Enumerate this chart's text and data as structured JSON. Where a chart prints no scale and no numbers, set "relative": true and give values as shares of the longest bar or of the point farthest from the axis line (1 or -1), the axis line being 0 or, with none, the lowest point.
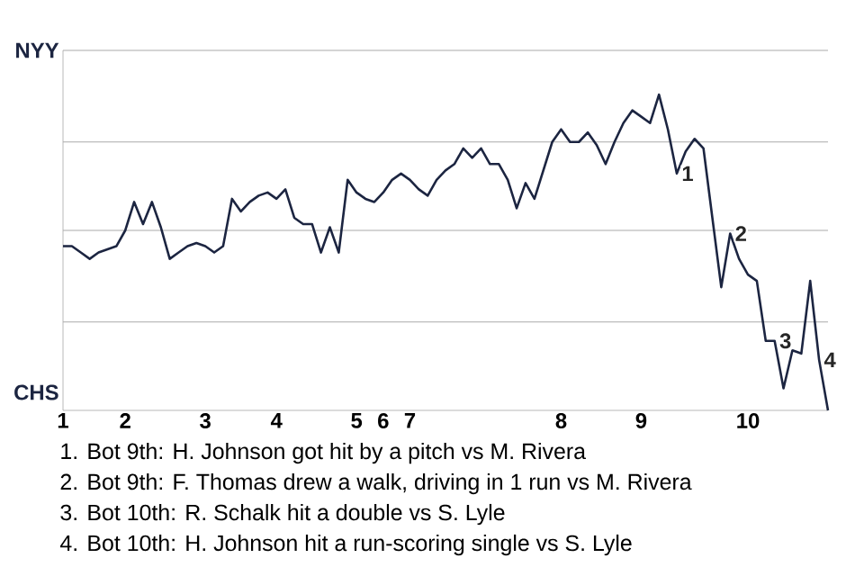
{
  "chart_data": {
    "type": "line",
    "relative": true,
    "categories": [
      "1",
      null,
      null,
      null,
      null,
      null,
      null,
      "2",
      null,
      null,
      null,
      null,
      null,
      null,
      null,
      null,
      "3",
      null,
      null,
      null,
      null,
      null,
      null,
      null,
      "4",
      null,
      null,
      null,
      null,
      null,
      null,
      null,
      null,
      "5",
      null,
      null,
      "6",
      null,
      null,
      "7",
      null,
      null,
      null,
      null,
      null,
      null,
      null,
      null,
      null,
      null,
      null,
      null,
      null,
      null,
      null,
      null,
      "8",
      null,
      null,
      null,
      null,
      null,
      null,
      null,
      null,
      "9",
      null,
      null,
      null,
      null,
      null,
      null,
      null,
      null,
      null,
      null,
      null,
      "10",
      null,
      null,
      null,
      null,
      null,
      null,
      null,
      null,
      null
    ],
    "series": [
      {
        "color": "#1c2541",
        "values": [
          0.52,
          0.52,
          0.5,
          0.48,
          0.5,
          0.51,
          0.52,
          0.57,
          0.66,
          0.59,
          0.66,
          0.58,
          0.48,
          0.5,
          0.52,
          0.53,
          0.52,
          0.5,
          0.52,
          0.67,
          0.63,
          0.66,
          0.68,
          0.69,
          0.67,
          0.7,
          0.61,
          0.59,
          0.59,
          0.5,
          0.58,
          0.5,
          0.73,
          0.69,
          0.67,
          0.66,
          0.69,
          0.73,
          0.75,
          0.73,
          0.7,
          0.68,
          0.73,
          0.76,
          0.78,
          0.83,
          0.8,
          0.83,
          0.78,
          0.78,
          0.73,
          0.64,
          0.72,
          0.67,
          0.76,
          0.85,
          0.89,
          0.85,
          0.85,
          0.88,
          0.84,
          0.78,
          0.85,
          0.91,
          0.95,
          0.93,
          0.91,
          1,
          0.89,
          0.75,
          0.82,
          0.86,
          0.83,
          0.61,
          0.39,
          0.56,
          0.48,
          0.43,
          0.41,
          0.22,
          0.22,
          0.07,
          0.19,
          0.18,
          0.41,
          0.16,
          0
        ]
      }
    ],
    "ref_lines": [
      {
        "axis": "y",
        "value": 0.28,
        "color": "#aaaaaa"
      },
      {
        "axis": "y",
        "value": 0.57,
        "color": "#aaaaaa"
      },
      {
        "axis": "y",
        "value": 0.85,
        "color": "#aaaaaa"
      },
      {
        "axis": "y",
        "value": 1.14,
        "color": "#aaaaaa"
      }
    ],
    "annotations": [
      {
        "text": "1",
        "y": 0.75
      },
      {
        "text": "2",
        "y": 0.56
      },
      {
        "text": "3",
        "y": 0.22
      },
      {
        "text": "4",
        "y": 0.16
      },
      "NYY",
      "CHS",
      "1. Bot 9th: H. Johnson got hit by a pitch vs M. Rivera",
      "2. Bot 9th: F. Thomas drew a walk, driving in 1 run vs M. Rivera",
      "3. Bot 10th: R. Schalk hit a double vs S. Lyle",
      "4. Bot 10th: H. Johnson hit a run-scoring single vs S. Lyle"
    ]
  }
}
